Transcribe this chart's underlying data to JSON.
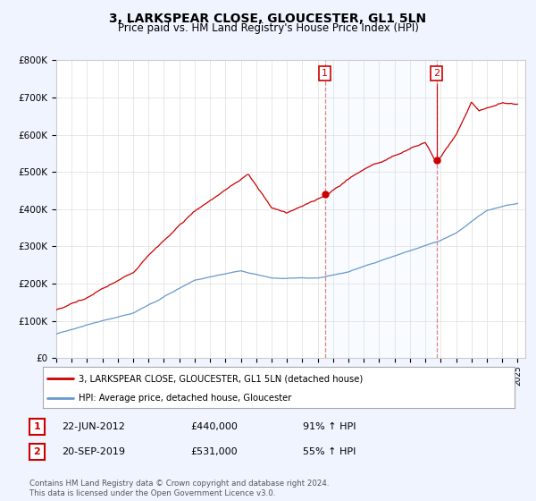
{
  "title": "3, LARKSPEAR CLOSE, GLOUCESTER, GL1 5LN",
  "subtitle": "Price paid vs. HM Land Registry's House Price Index (HPI)",
  "title_fontsize": 10,
  "subtitle_fontsize": 8.5,
  "ylim": [
    0,
    800000
  ],
  "yticks": [
    0,
    100000,
    200000,
    300000,
    400000,
    500000,
    600000,
    700000,
    800000
  ],
  "ytick_labels": [
    "£0",
    "£100K",
    "£200K",
    "£300K",
    "£400K",
    "£500K",
    "£600K",
    "£700K",
    "£800K"
  ],
  "xlim_start": 1995.0,
  "xlim_end": 2025.5,
  "sale1_x": 2012.472,
  "sale1_y": 440000,
  "sale1_label": "1",
  "sale2_x": 2019.722,
  "sale2_y": 531000,
  "sale2_label": "2",
  "red_line_color": "#cc0000",
  "blue_line_color": "#6699cc",
  "shade_color": "#ddeeff",
  "vline_color": "#dd6666",
  "marker_box_color": "#cc0000",
  "legend_red_label": "3, LARKSPEAR CLOSE, GLOUCESTER, GL1 5LN (detached house)",
  "legend_blue_label": "HPI: Average price, detached house, Gloucester",
  "sale_info": [
    {
      "num": "1",
      "date": "22-JUN-2012",
      "price": "£440,000",
      "pct": "91% ↑ HPI"
    },
    {
      "num": "2",
      "date": "20-SEP-2019",
      "price": "£531,000",
      "pct": "55% ↑ HPI"
    }
  ],
  "footnote": "Contains HM Land Registry data © Crown copyright and database right 2024.\nThis data is licensed under the Open Government Licence v3.0.",
  "background_color": "#f0f4ff",
  "plot_bg_color": "#ffffff",
  "grid_color": "#dddddd",
  "font_family": "DejaVu Sans"
}
